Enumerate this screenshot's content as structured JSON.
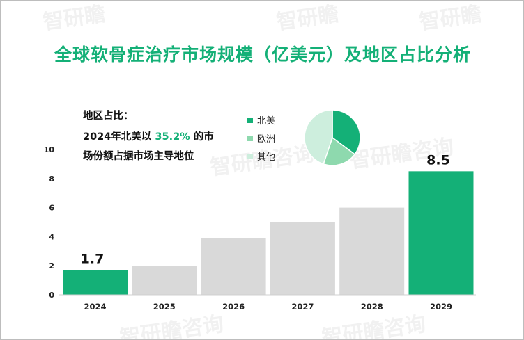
{
  "title": "全球软骨症治疗市场规模（亿美元）及地区占比分析",
  "note": {
    "line1": "地区占比：",
    "line2_prefix": "2024年北美以 ",
    "line2_highlight": "35.2%",
    "line2_suffix": " 的市",
    "line3": "场份额占据市场主导地位"
  },
  "colors": {
    "accent": "#14b077",
    "bar_gray": "#d9d9d9",
    "europe": "#8ed9ae",
    "other": "#cdeedd"
  },
  "chart_data": [
    {
      "type": "bar",
      "title": "全球软骨症治疗市场规模（亿美元）及地区占比分析",
      "categories": [
        "2024",
        "2025",
        "2026",
        "2027",
        "2028",
        "2029"
      ],
      "values": [
        1.7,
        2.0,
        3.9,
        5.0,
        6.0,
        8.5
      ],
      "highlighted": [
        "2024",
        "2029"
      ],
      "data_labels": {
        "2024": "1.7",
        "2029": "8.5"
      },
      "y_ticks": [
        "0",
        "2",
        "4",
        "6",
        "8",
        "10"
      ],
      "ylim": [
        0,
        10
      ],
      "grid": false
    },
    {
      "type": "pie",
      "labels": [
        "北美",
        "欧洲",
        "其他"
      ],
      "values": [
        35.2,
        20.0,
        44.8
      ],
      "legend_placement": "left"
    }
  ],
  "watermark": "智研瞻咨询"
}
